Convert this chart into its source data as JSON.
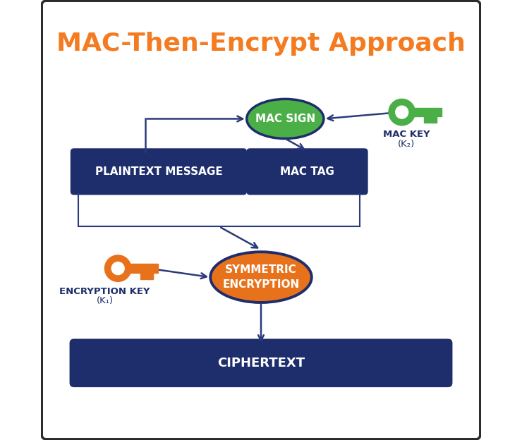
{
  "title": "MAC-Then-Encrypt Approach",
  "title_color": "#F47B20",
  "title_fontsize": 26,
  "bg_color": "#FFFFFF",
  "border_color": "#2B2B2B",
  "dark_blue": "#1E2D6B",
  "orange": "#E8721C",
  "green_ellipse": "#4BAF47",
  "green_key": "#4BAF47",
  "orange_key": "#E8721C",
  "arrow_color": "#2B3A7A",
  "white_text": "#FFFFFF",
  "dark_label": "#1E2D6B",
  "box_plaintext_label": "PLAINTEXT MESSAGE",
  "box_mactag_label": "MAC TAG",
  "ellipse_macsign_label": "MAC SIGN",
  "ellipse_symenc_label": "SYMMETRIC\nENCRYPTION",
  "box_ciphertext_label": "CIPHERTEXT",
  "mac_key_label1": "MAC KEY",
  "mac_key_label2": "(K₂)",
  "enc_key_label1": "ENCRYPTION KEY",
  "enc_key_label2": "(K₁)",
  "figw": 7.4,
  "figh": 6.24,
  "dpi": 100
}
